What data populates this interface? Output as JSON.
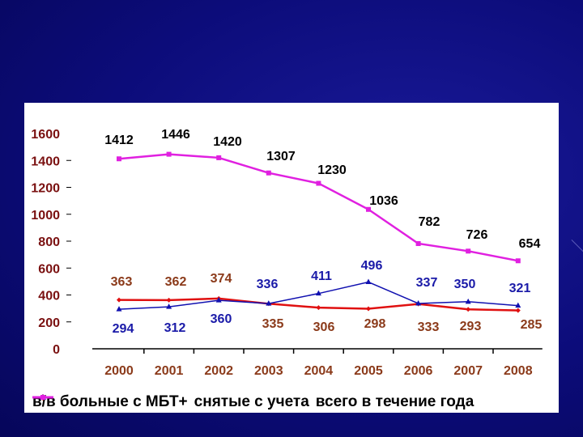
{
  "chart_data": {
    "type": "line",
    "title": "",
    "xlabel": "",
    "ylabel": "",
    "categories": [
      "2000",
      "2001",
      "2002",
      "2003",
      "2004",
      "2005",
      "2006",
      "2007",
      "2008"
    ],
    "yticks": [
      "0",
      "200",
      "400",
      "600",
      "800",
      "1000",
      "1200",
      "1400",
      "1600"
    ],
    "ylim": [
      0,
      1600
    ],
    "grid": false,
    "legend_position": "bottom",
    "series": [
      {
        "name": "в/в больные с МБТ+",
        "color": "#e01010",
        "label_color": "#8b3a1a",
        "marker": "diamond",
        "values": [
          363,
          362,
          374,
          335,
          306,
          298,
          333,
          293,
          285
        ]
      },
      {
        "name": "снятые с учета",
        "color": "#1010b0",
        "label_color": "#1a1aa8",
        "marker": "triangle",
        "values": [
          294,
          312,
          360,
          336,
          411,
          496,
          337,
          350,
          321
        ]
      },
      {
        "name": "всего в течение года",
        "color": "#e020e0",
        "label_color": "#000000",
        "marker": "square",
        "values": [
          1412,
          1446,
          1420,
          1307,
          1230,
          1036,
          782,
          726,
          654
        ]
      }
    ]
  }
}
